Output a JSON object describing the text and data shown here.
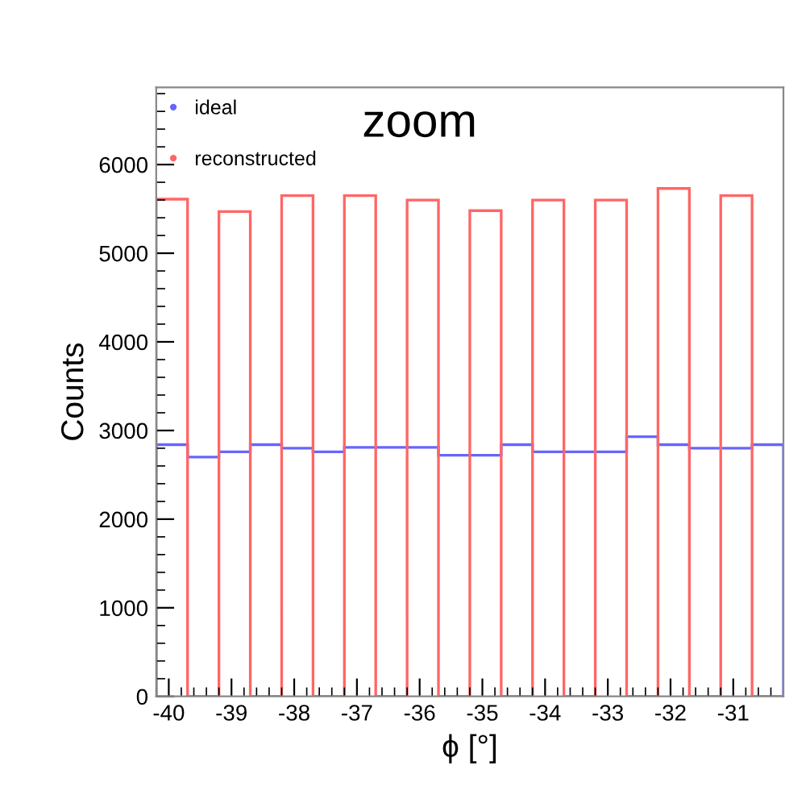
{
  "chart_data": {
    "type": "histogram",
    "title": "zoom",
    "xlabel": "ϕ [°]",
    "ylabel": "Counts",
    "bins": [
      -40.2,
      -39.7,
      -39.2,
      -38.7,
      -38.2,
      -37.7,
      -37.2,
      -36.7,
      -36.2,
      -35.7,
      -35.2,
      -34.7,
      -34.2,
      -33.7,
      -33.2,
      -32.7,
      -32.2,
      -31.7,
      -31.2,
      -30.7,
      -30.2
    ],
    "series": [
      {
        "name": "ideal",
        "color": "#6666ff",
        "values": [
          2840,
          2700,
          2760,
          2840,
          2800,
          2760,
          2810,
          2810,
          2810,
          2720,
          2720,
          2840,
          2760,
          2760,
          2760,
          2930,
          2840,
          2800,
          2800,
          2840
        ]
      },
      {
        "name": "reconstructed",
        "color": "#ff6666",
        "values": [
          5610,
          0,
          5470,
          0,
          5650,
          0,
          5650,
          0,
          5600,
          0,
          5480,
          0,
          5600,
          0,
          5600,
          0,
          5730,
          0,
          5650,
          0
        ]
      }
    ],
    "xlim": [
      -40.2,
      -30.2
    ],
    "xticks": [
      -40,
      -39,
      -38,
      -37,
      -36,
      -35,
      -34,
      -33,
      -32,
      -31
    ],
    "ylim": [
      0,
      6870
    ],
    "yticks": [
      0,
      1000,
      2000,
      3000,
      4000,
      5000,
      6000
    ],
    "marker": "circle",
    "legend": "top left",
    "grid": false
  }
}
